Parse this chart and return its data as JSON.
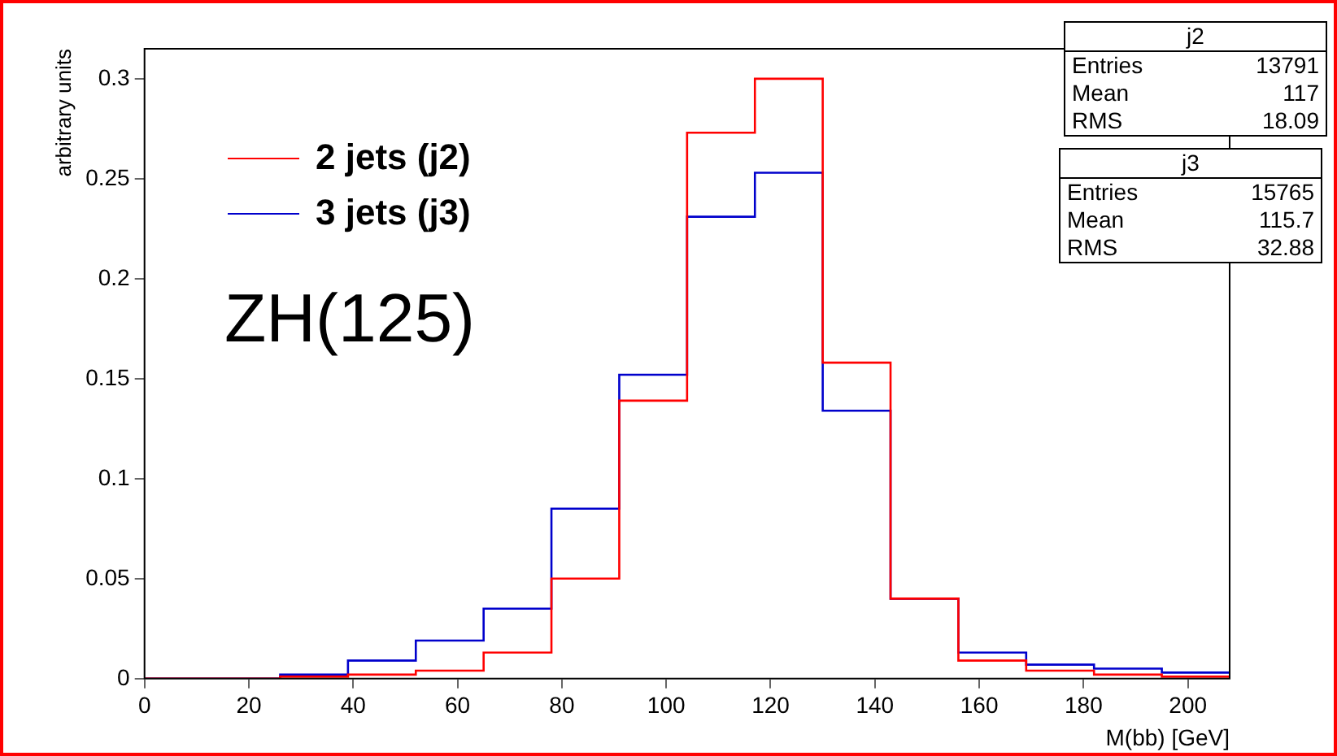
{
  "chart_data": {
    "type": "histogram",
    "xlabel": "M(bb) [GeV]",
    "ylabel": "arbitrary units",
    "bins": [
      0,
      13,
      26,
      39,
      52,
      65,
      78,
      91,
      104,
      117,
      130,
      143,
      156,
      169,
      182,
      195,
      208
    ],
    "series": [
      {
        "name": "2 jets (j2)",
        "color": "#ff0000",
        "values": [
          0,
          0,
          0.001,
          0.002,
          0.004,
          0.013,
          0.05,
          0.139,
          0.273,
          0.3,
          0.158,
          0.04,
          0.009,
          0.004,
          0.002,
          0.001
        ]
      },
      {
        "name": "3 jets (j3)",
        "color": "#0000cc",
        "values": [
          0,
          0,
          0.002,
          0.009,
          0.019,
          0.035,
          0.085,
          0.152,
          0.231,
          0.253,
          0.134,
          0.04,
          0.013,
          0.007,
          0.005,
          0.003
        ]
      }
    ],
    "xlim": [
      0,
      208
    ],
    "xticks": [
      0,
      20,
      40,
      60,
      80,
      100,
      120,
      140,
      160,
      180,
      200
    ],
    "ylim": [
      0,
      0.315
    ],
    "yticks": [
      0,
      0.05,
      0.1,
      0.15,
      0.2,
      0.25,
      0.3
    ],
    "grid": false,
    "legend": "top left",
    "annotations": [
      "ZH(125)",
      "j2",
      "Entries",
      "13791",
      "Mean",
      "117",
      "RMS",
      "18.09",
      "j3",
      "Entries",
      "15765",
      "Mean",
      "115.7",
      "RMS",
      "32.88"
    ]
  }
}
